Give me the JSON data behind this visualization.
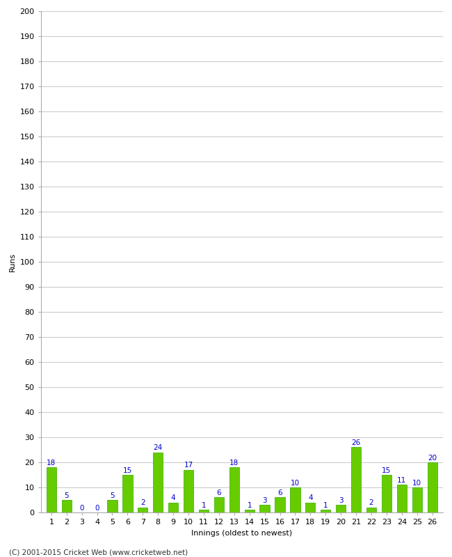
{
  "xlabel": "Innings (oldest to newest)",
  "ylabel": "Runs",
  "bar_color": "#66cc00",
  "bar_edge_color": "#33aa00",
  "label_color": "#0000cc",
  "background_color": "#ffffff",
  "plot_bg_color": "#ffffff",
  "grid_color": "#cccccc",
  "categories": [
    "1",
    "2",
    "3",
    "4",
    "5",
    "6",
    "7",
    "8",
    "9",
    "10",
    "11",
    "12",
    "13",
    "14",
    "15",
    "16",
    "17",
    "18",
    "19",
    "20",
    "21",
    "22",
    "23",
    "24",
    "25",
    "26"
  ],
  "values": [
    18,
    5,
    0,
    0,
    5,
    15,
    2,
    24,
    4,
    17,
    1,
    6,
    18,
    1,
    3,
    6,
    10,
    4,
    1,
    3,
    26,
    2,
    15,
    11,
    10,
    20
  ],
  "ylim": [
    0,
    200
  ],
  "yticks": [
    0,
    10,
    20,
    30,
    40,
    50,
    60,
    70,
    80,
    90,
    100,
    110,
    120,
    130,
    140,
    150,
    160,
    170,
    180,
    190,
    200
  ],
  "footer": "(C) 2001-2015 Cricket Web (www.cricketweb.net)",
  "axis_fontsize": 8,
  "tick_fontsize": 8,
  "label_fontsize": 7.5
}
